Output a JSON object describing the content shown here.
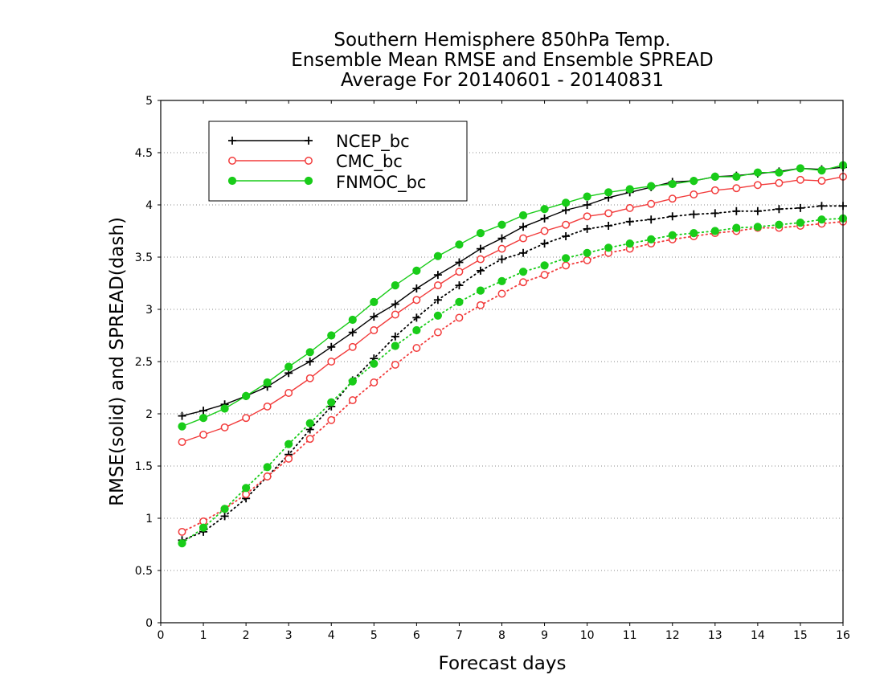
{
  "chart_data": {
    "type": "line",
    "title_lines": [
      "Southern Hemisphere 850hPa Temp.",
      "Ensemble Mean RMSE and Ensemble SPREAD",
      "Average For 20140601 - 20140831"
    ],
    "xlabel": "Forecast days",
    "ylabel": "RMSE(solid) and SPREAD(dash)",
    "xlim": [
      0,
      16
    ],
    "ylim": [
      0,
      5
    ],
    "xticks": [
      "0",
      "1",
      "2",
      "3",
      "4",
      "5",
      "6",
      "7",
      "8",
      "9",
      "10",
      "11",
      "12",
      "13",
      "14",
      "15",
      "16"
    ],
    "yticks": [
      "0",
      "0.5",
      "1",
      "1.5",
      "2",
      "2.5",
      "3",
      "3.5",
      "4",
      "4.5",
      "5"
    ],
    "grid": "dotted horizontal",
    "legend_position": "top-left",
    "x": [
      0.5,
      1,
      1.5,
      2,
      2.5,
      3,
      3.5,
      4,
      4.5,
      5,
      5.5,
      6,
      6.5,
      7,
      7.5,
      8,
      8.5,
      9,
      9.5,
      10,
      10.5,
      11,
      11.5,
      12,
      12.5,
      13,
      13.5,
      14,
      14.5,
      15,
      15.5,
      16
    ],
    "series": [
      {
        "name": "NCEP_bc",
        "color": "#000000",
        "marker": "plus",
        "rmse": [
          1.98,
          2.03,
          2.09,
          2.17,
          2.26,
          2.39,
          2.5,
          2.64,
          2.78,
          2.93,
          3.05,
          3.2,
          3.33,
          3.45,
          3.58,
          3.68,
          3.79,
          3.87,
          3.95,
          4.0,
          4.07,
          4.12,
          4.17,
          4.22,
          4.23,
          4.27,
          4.28,
          4.3,
          4.32,
          4.35,
          4.34,
          4.36
        ],
        "spread": [
          0.79,
          0.87,
          1.02,
          1.19,
          1.4,
          1.61,
          1.85,
          2.07,
          2.32,
          2.53,
          2.74,
          2.92,
          3.09,
          3.23,
          3.37,
          3.48,
          3.54,
          3.63,
          3.7,
          3.77,
          3.8,
          3.84,
          3.86,
          3.89,
          3.91,
          3.92,
          3.94,
          3.94,
          3.96,
          3.97,
          3.99,
          3.99
        ]
      },
      {
        "name": "CMC_bc",
        "color": "#f23b3b",
        "marker": "open-circle",
        "rmse": [
          1.73,
          1.8,
          1.87,
          1.96,
          2.07,
          2.2,
          2.34,
          2.5,
          2.64,
          2.8,
          2.95,
          3.09,
          3.23,
          3.36,
          3.48,
          3.58,
          3.68,
          3.75,
          3.81,
          3.89,
          3.92,
          3.97,
          4.01,
          4.06,
          4.1,
          4.14,
          4.16,
          4.19,
          4.21,
          4.24,
          4.23,
          4.27
        ],
        "spread": [
          0.87,
          0.97,
          1.09,
          1.23,
          1.4,
          1.57,
          1.76,
          1.94,
          2.13,
          2.3,
          2.47,
          2.63,
          2.78,
          2.92,
          3.04,
          3.15,
          3.26,
          3.33,
          3.42,
          3.47,
          3.54,
          3.58,
          3.63,
          3.67,
          3.7,
          3.73,
          3.75,
          3.78,
          3.78,
          3.8,
          3.82,
          3.84
        ]
      },
      {
        "name": "FNMOC_bc",
        "color": "#19cc19",
        "marker": "filled-circle",
        "rmse": [
          1.88,
          1.96,
          2.05,
          2.17,
          2.3,
          2.45,
          2.59,
          2.75,
          2.9,
          3.07,
          3.23,
          3.37,
          3.51,
          3.62,
          3.73,
          3.81,
          3.9,
          3.96,
          4.02,
          4.08,
          4.12,
          4.15,
          4.18,
          4.2,
          4.23,
          4.27,
          4.27,
          4.31,
          4.31,
          4.35,
          4.33,
          4.38
        ],
        "spread": [
          0.76,
          0.91,
          1.09,
          1.29,
          1.49,
          1.71,
          1.91,
          2.11,
          2.31,
          2.48,
          2.65,
          2.8,
          2.94,
          3.07,
          3.18,
          3.27,
          3.36,
          3.42,
          3.49,
          3.54,
          3.59,
          3.63,
          3.67,
          3.71,
          3.73,
          3.75,
          3.78,
          3.79,
          3.81,
          3.83,
          3.86,
          3.87
        ]
      }
    ]
  }
}
